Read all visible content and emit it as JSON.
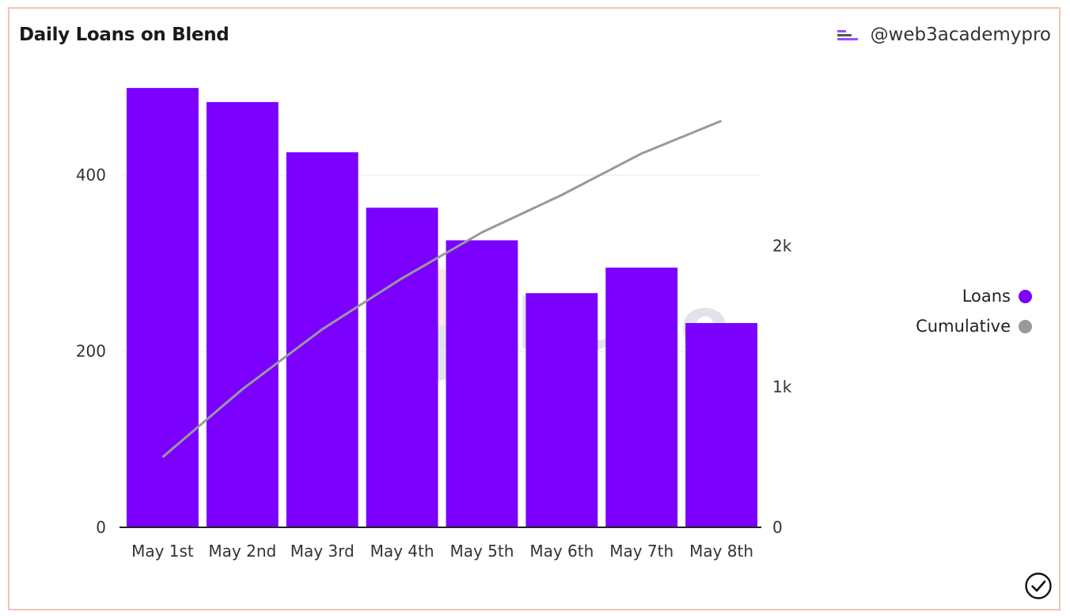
{
  "title": "Daily Loans on Blend",
  "author": {
    "handle": "@web3academypro",
    "logo_icon": "web3academy-logo-icon"
  },
  "watermark": {
    "text": "Dune",
    "icon": "dune-logo-icon"
  },
  "legend": [
    {
      "label": "Loans",
      "color": "#7b00ff"
    },
    {
      "label": "Cumulative",
      "color": "#999999"
    }
  ],
  "footer": {
    "icon": "checkmark-circle-icon"
  },
  "chart_data": {
    "type": "bar",
    "title": "Daily Loans on Blend",
    "categories": [
      "May 1st",
      "May 2nd",
      "May 3rd",
      "May 4th",
      "May 5th",
      "May 6th",
      "May 7th",
      "May 8th"
    ],
    "series": [
      {
        "name": "Loans",
        "type": "bar",
        "axis": "left",
        "color": "#7b00ff",
        "values": [
          499,
          483,
          426,
          363,
          326,
          266,
          295,
          232
        ]
      },
      {
        "name": "Cumulative",
        "type": "line",
        "axis": "right",
        "color": "#999999",
        "values": [
          499,
          982,
          1408,
          1771,
          2097,
          2363,
          2658,
          2890
        ]
      }
    ],
    "y_left": {
      "ylim": [
        0,
        500
      ],
      "ticks": [
        0,
        200,
        400
      ],
      "tick_labels": [
        "0",
        "200",
        "400"
      ]
    },
    "y_right": {
      "ylim": [
        0,
        3130
      ],
      "ticks": [
        0,
        1000,
        2000
      ],
      "tick_labels": [
        "0",
        "1k",
        "2k"
      ]
    },
    "grid": true,
    "legend_position": "right"
  }
}
